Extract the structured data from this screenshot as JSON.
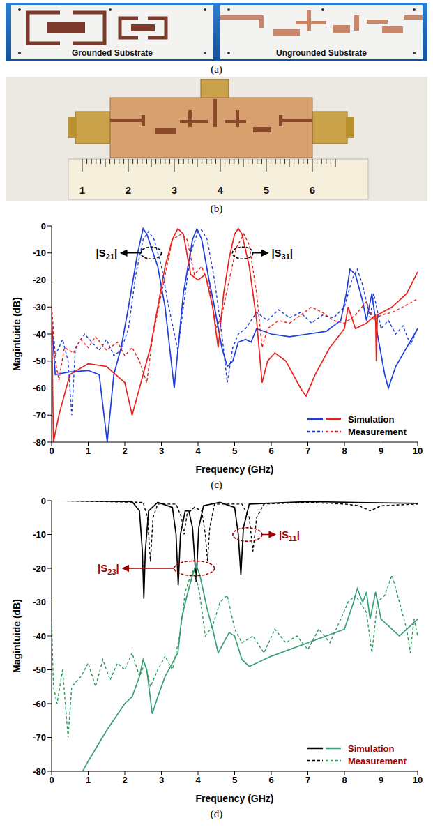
{
  "photos": [
    {
      "caption": "(a)",
      "labels": [
        "Grounded Substrate",
        "Ungrounded Substrate"
      ]
    },
    {
      "caption": "(b)",
      "ruler": [
        1,
        2,
        3,
        4,
        5,
        6
      ]
    }
  ],
  "chart_data": [
    {
      "type": "line",
      "caption": "(c)",
      "x_label": "Frequency (GHz)",
      "y_label": "Magintuide (dB)",
      "xlim": [
        0,
        10
      ],
      "xticks": [
        0,
        1,
        2,
        3,
        4,
        5,
        6,
        7,
        8,
        9,
        10
      ],
      "ylim": [
        -80,
        0
      ],
      "yticks": [
        -80,
        -70,
        -60,
        -50,
        -40,
        -30,
        -20,
        -10,
        0
      ],
      "grid": false,
      "legend": "lower right",
      "annotations": [
        "|S21|",
        "|S31|"
      ],
      "series": [
        {
          "name": "Simulation",
          "parameter": "|S21|",
          "color": "#1c3fdc",
          "line_style": "solid",
          "x": [
            0,
            0.1,
            0.5,
            1,
            1.3,
            1.52,
            1.7,
            1.9,
            2.1,
            2.35,
            2.5,
            2.6,
            2.9,
            3.1,
            3.35,
            3.6,
            3.85,
            3.97,
            4.1,
            4.3,
            4.45,
            4.65,
            4.8,
            4.95,
            5.1,
            5.3,
            5.45,
            5.6,
            6,
            6.5,
            7,
            7.5,
            7.9,
            8.05,
            8.15,
            8.3,
            8.5,
            8.6,
            8.75,
            8.9,
            9.1,
            9.2,
            9.4,
            9.7,
            10
          ],
          "values": [
            -35,
            -55,
            -54,
            -53.5,
            -55,
            -80,
            -55,
            -45,
            -30,
            -10,
            -1,
            -3,
            -15,
            -30,
            -60,
            -25,
            -5,
            -1,
            -5,
            -20,
            -30,
            -45,
            -52,
            -50,
            -43,
            -42,
            -43,
            -38,
            -40,
            -41,
            -40,
            -39,
            -35,
            -25,
            -16,
            -18,
            -28,
            -35,
            -25,
            -40,
            -55,
            -60,
            -52,
            -45,
            -38
          ]
        },
        {
          "name": "Simulation",
          "parameter": "|S31|",
          "color": "#e8231f",
          "line_style": "solid",
          "x": [
            0,
            0.05,
            0.2,
            0.5,
            1,
            1.5,
            2,
            2.2,
            2.5,
            2.7,
            2.9,
            3.1,
            3.3,
            3.45,
            3.6,
            3.8,
            4,
            4.2,
            4.4,
            4.55,
            4.7,
            4.85,
            5,
            5.1,
            5.2,
            5.4,
            5.6,
            5.75,
            5.9,
            6.1,
            6.4,
            6.8,
            6.95,
            7.2,
            7.6,
            8,
            8.1,
            8.3,
            8.6,
            8.85,
            8.87,
            8.9,
            9.3,
            9.7,
            10
          ],
          "values": [
            -30,
            -80,
            -70,
            -55,
            -51,
            -52,
            -58,
            -70,
            -55,
            -45,
            -30,
            -15,
            -5,
            -1,
            -3,
            -18,
            -20,
            -18,
            -30,
            -45,
            -25,
            -12,
            -3,
            -1,
            -3,
            -15,
            -35,
            -58,
            -50,
            -47,
            -50,
            -60,
            -63,
            -55,
            -45,
            -38,
            -30,
            -38,
            -36,
            -33,
            -50,
            -33,
            -30,
            -25,
            -17
          ]
        },
        {
          "name": "Measurement",
          "parameter": "|S21|",
          "color": "#1c3fdc",
          "line_style": "dashed",
          "x": [
            0,
            0.1,
            0.3,
            0.45,
            0.55,
            0.65,
            0.9,
            1.1,
            1.3,
            1.5,
            1.7,
            1.9,
            2.1,
            2.3,
            2.5,
            2.65,
            2.8,
            3,
            3.2,
            3.45,
            3.6,
            3.8,
            4,
            4.1,
            4.25,
            4.45,
            4.65,
            4.8,
            4.95,
            5.1,
            5.3,
            5.6,
            5.9,
            6.2,
            6.5,
            6.8,
            7.1,
            7.4,
            7.7,
            8,
            8.2,
            8.35,
            8.5,
            8.7,
            8.8,
            9,
            9.2,
            9.4,
            9.6,
            9.8,
            10
          ],
          "values": [
            -30,
            -48,
            -42,
            -50,
            -70,
            -45,
            -40,
            -43,
            -46,
            -42,
            -48,
            -46,
            -38,
            -18,
            -5,
            -2,
            -5,
            -15,
            -30,
            -46,
            -30,
            -10,
            -2,
            -1.5,
            -5,
            -20,
            -40,
            -58,
            -45,
            -40,
            -38,
            -32,
            -35,
            -31,
            -34,
            -32,
            -36,
            -33,
            -34,
            -30,
            -20,
            -16,
            -22,
            -34,
            -25,
            -38,
            -35,
            -40,
            -37,
            -44,
            -38
          ]
        },
        {
          "name": "Measurement",
          "parameter": "|S31|",
          "color": "#e8231f",
          "line_style": "dashed",
          "x": [
            0,
            0.1,
            0.2,
            0.35,
            0.6,
            0.8,
            1,
            1.2,
            1.5,
            1.8,
            2,
            2.2,
            2.4,
            2.6,
            2.75,
            3,
            3.3,
            3.55,
            3.7,
            3.9,
            4.1,
            4.3,
            4.5,
            4.65,
            4.85,
            5.05,
            5.25,
            5.4,
            5.6,
            5.75,
            5.9,
            6.2,
            6.5,
            6.8,
            7.1,
            7.4,
            7.7,
            8,
            8.3,
            8.6,
            8.8,
            9,
            9.3,
            9.6,
            10
          ],
          "values": [
            -30,
            -50,
            -57,
            -45,
            -47,
            -42,
            -45,
            -41,
            -46,
            -43,
            -48,
            -45,
            -50,
            -58,
            -42,
            -25,
            -5,
            -3,
            -5,
            -18,
            -15,
            -22,
            -38,
            -33,
            -20,
            -8,
            -3,
            -7,
            -25,
            -45,
            -38,
            -35,
            -36,
            -33,
            -30,
            -32,
            -35,
            -36,
            -33,
            -28,
            -35,
            -33,
            -32,
            -30,
            -27
          ]
        }
      ]
    },
    {
      "type": "line",
      "caption": "(d)",
      "x_label": "Frequency (GHz)",
      "y_label": "Magintuide (dB)",
      "xlim": [
        0,
        10
      ],
      "xticks": [
        0,
        1,
        2,
        3,
        4,
        5,
        6,
        7,
        8,
        9,
        10
      ],
      "ylim": [
        -80,
        0
      ],
      "yticks": [
        -80,
        -70,
        -60,
        -50,
        -40,
        -30,
        -20,
        -10,
        0
      ],
      "grid": false,
      "legend": "lower right",
      "annotations": [
        "|S11|",
        "|S23|"
      ],
      "series": [
        {
          "name": "Simulation",
          "parameter": "|S11|",
          "color": "#000000",
          "line_style": "solid",
          "x": [
            0,
            2.2,
            2.4,
            2.48,
            2.52,
            2.56,
            2.65,
            2.9,
            3.3,
            3.4,
            3.46,
            3.52,
            3.65,
            3.75,
            3.85,
            3.95,
            4.02,
            4.15,
            4.6,
            5,
            5.1,
            5.17,
            5.24,
            5.4,
            7,
            10
          ],
          "values": [
            0,
            -0.3,
            -3,
            -15,
            -29,
            -15,
            -3,
            -0.5,
            -2,
            -10,
            -25,
            -10,
            -3,
            -3,
            -8,
            -24,
            -8,
            -1.5,
            -0.5,
            -2,
            -10,
            -22,
            -8,
            -1,
            -0.3,
            -0.8
          ]
        },
        {
          "name": "Simulation",
          "parameter": "|S23|",
          "color": "#3a9e78",
          "line_style": "solid",
          "x": [
            0.85,
            1,
            1.5,
            2,
            2.2,
            2.4,
            2.5,
            2.6,
            2.75,
            2.9,
            3.1,
            3.3,
            3.45,
            3.55,
            3.7,
            3.85,
            3.95,
            4.05,
            4.25,
            4.4,
            4.55,
            4.7,
            4.85,
            5,
            5.2,
            5.4,
            6,
            7,
            8,
            8.25,
            8.35,
            8.5,
            8.6,
            8.7,
            8.85,
            9,
            9.5,
            10
          ],
          "values": [
            -80,
            -77,
            -68,
            -60,
            -58,
            -52,
            -47,
            -50,
            -63,
            -58,
            -52,
            -48,
            -45,
            -35,
            -28,
            -22,
            -19,
            -22,
            -32,
            -38,
            -45,
            -42,
            -39,
            -40,
            -47,
            -49,
            -46,
            -42,
            -38,
            -30,
            -26,
            -30,
            -27,
            -35,
            -27,
            -35,
            -40,
            -35
          ]
        },
        {
          "name": "Measurement",
          "parameter": "|S11|",
          "color": "#000000",
          "line_style": "dashed",
          "x": [
            0,
            2.5,
            2.62,
            2.7,
            2.77,
            2.9,
            3.4,
            3.55,
            3.62,
            3.7,
            3.9,
            4.1,
            4.2,
            4.26,
            4.32,
            4.45,
            5.2,
            5.4,
            5.5,
            5.6,
            5.8,
            7,
            8,
            8.4,
            8.7,
            9,
            10
          ],
          "values": [
            0,
            -0.5,
            -5,
            -18,
            -5,
            -1,
            -1,
            -5,
            -10,
            -4,
            -2,
            -3,
            -10,
            -18,
            -8,
            -1,
            -1,
            -5,
            -15,
            -5,
            -1,
            -0.5,
            -1,
            -1.5,
            -3,
            -1.5,
            -1
          ]
        },
        {
          "name": "Measurement",
          "parameter": "|S23|",
          "color": "#2a9a5a",
          "line_style": "dashed",
          "x": [
            0,
            0.05,
            0.15,
            0.3,
            0.45,
            0.55,
            0.8,
            1,
            1.2,
            1.4,
            1.6,
            1.8,
            2,
            2.2,
            2.4,
            2.55,
            2.7,
            2.9,
            3.1,
            3.3,
            3.5,
            3.65,
            3.8,
            3.9,
            4.05,
            4.2,
            4.4,
            4.6,
            4.8,
            5,
            5.2,
            5.5,
            5.8,
            6.1,
            6.4,
            6.7,
            7,
            7.3,
            7.6,
            7.9,
            8.1,
            8.3,
            8.6,
            8.75,
            8.9,
            9.1,
            9.3,
            9.5,
            9.7,
            9.8,
            9.9,
            10
          ],
          "values": [
            -35,
            -55,
            -60,
            -50,
            -70,
            -55,
            -52,
            -48,
            -55,
            -47,
            -53,
            -48,
            -50,
            -45,
            -52,
            -48,
            -55,
            -50,
            -46,
            -50,
            -40,
            -27,
            -22,
            -20,
            -28,
            -40,
            -37,
            -30,
            -28,
            -38,
            -42,
            -40,
            -45,
            -38,
            -42,
            -40,
            -44,
            -38,
            -42,
            -35,
            -30,
            -28,
            -33,
            -45,
            -30,
            -28,
            -22,
            -30,
            -38,
            -45,
            -35,
            -40
          ]
        }
      ]
    }
  ]
}
